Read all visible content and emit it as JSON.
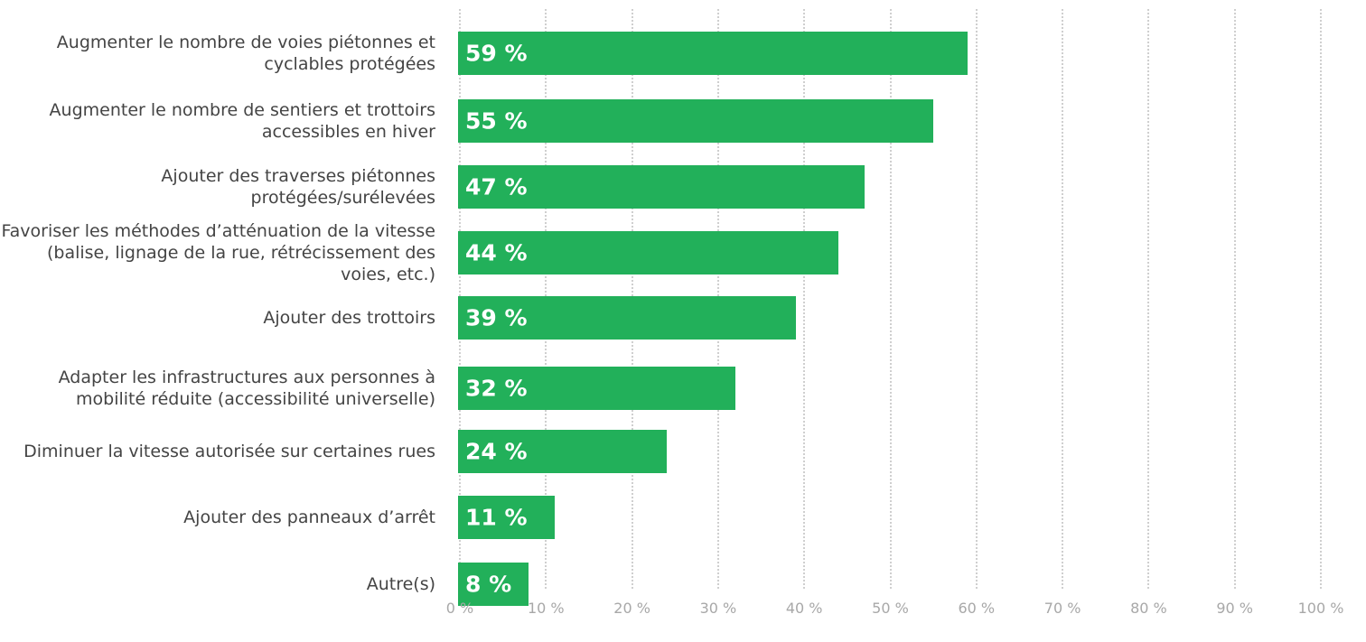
{
  "chart_data": {
    "type": "bar",
    "orientation": "horizontal",
    "categories": [
      "Augmenter le nombre de voies piétonnes et cyclables protégées",
      "Augmenter le nombre de sentiers et trottoirs accessibles en hiver",
      "Ajouter des traverses piétonnes protégées/surélevées",
      "Favoriser les méthodes d’atténuation de la vitesse (balise, lignage de la rue, rétrécissement des voies, etc.)",
      "Ajouter des trottoirs",
      "Adapter les infrastructures aux personnes à mobilité réduite (accessibilité universelle)",
      "Diminuer la vitesse autorisée sur certaines rues",
      "Ajouter des panneaux d’arrêt",
      "Autre(s)"
    ],
    "values": [
      59,
      55,
      47,
      44,
      39,
      32,
      24,
      11,
      8
    ],
    "data_labels": [
      "59 %",
      "55 %",
      "47 %",
      "44 %",
      "39 %",
      "32 %",
      "24 %",
      "11 %",
      "8 %"
    ],
    "xlim": [
      0,
      100
    ],
    "x_ticks": [
      0,
      10,
      20,
      30,
      40,
      50,
      60,
      70,
      80,
      90,
      100
    ],
    "x_tick_labels": [
      "0 %",
      "10 %",
      "20 %",
      "30 %",
      "40 %",
      "50 %",
      "60 %",
      "70 %",
      "80 %",
      "90 %",
      "100 %"
    ],
    "grid": true,
    "legend": "none",
    "bar_color": "#22b05a",
    "label_color": "#444444",
    "tick_color": "#a8a8a8",
    "grid_color": "#cfcfcf"
  }
}
